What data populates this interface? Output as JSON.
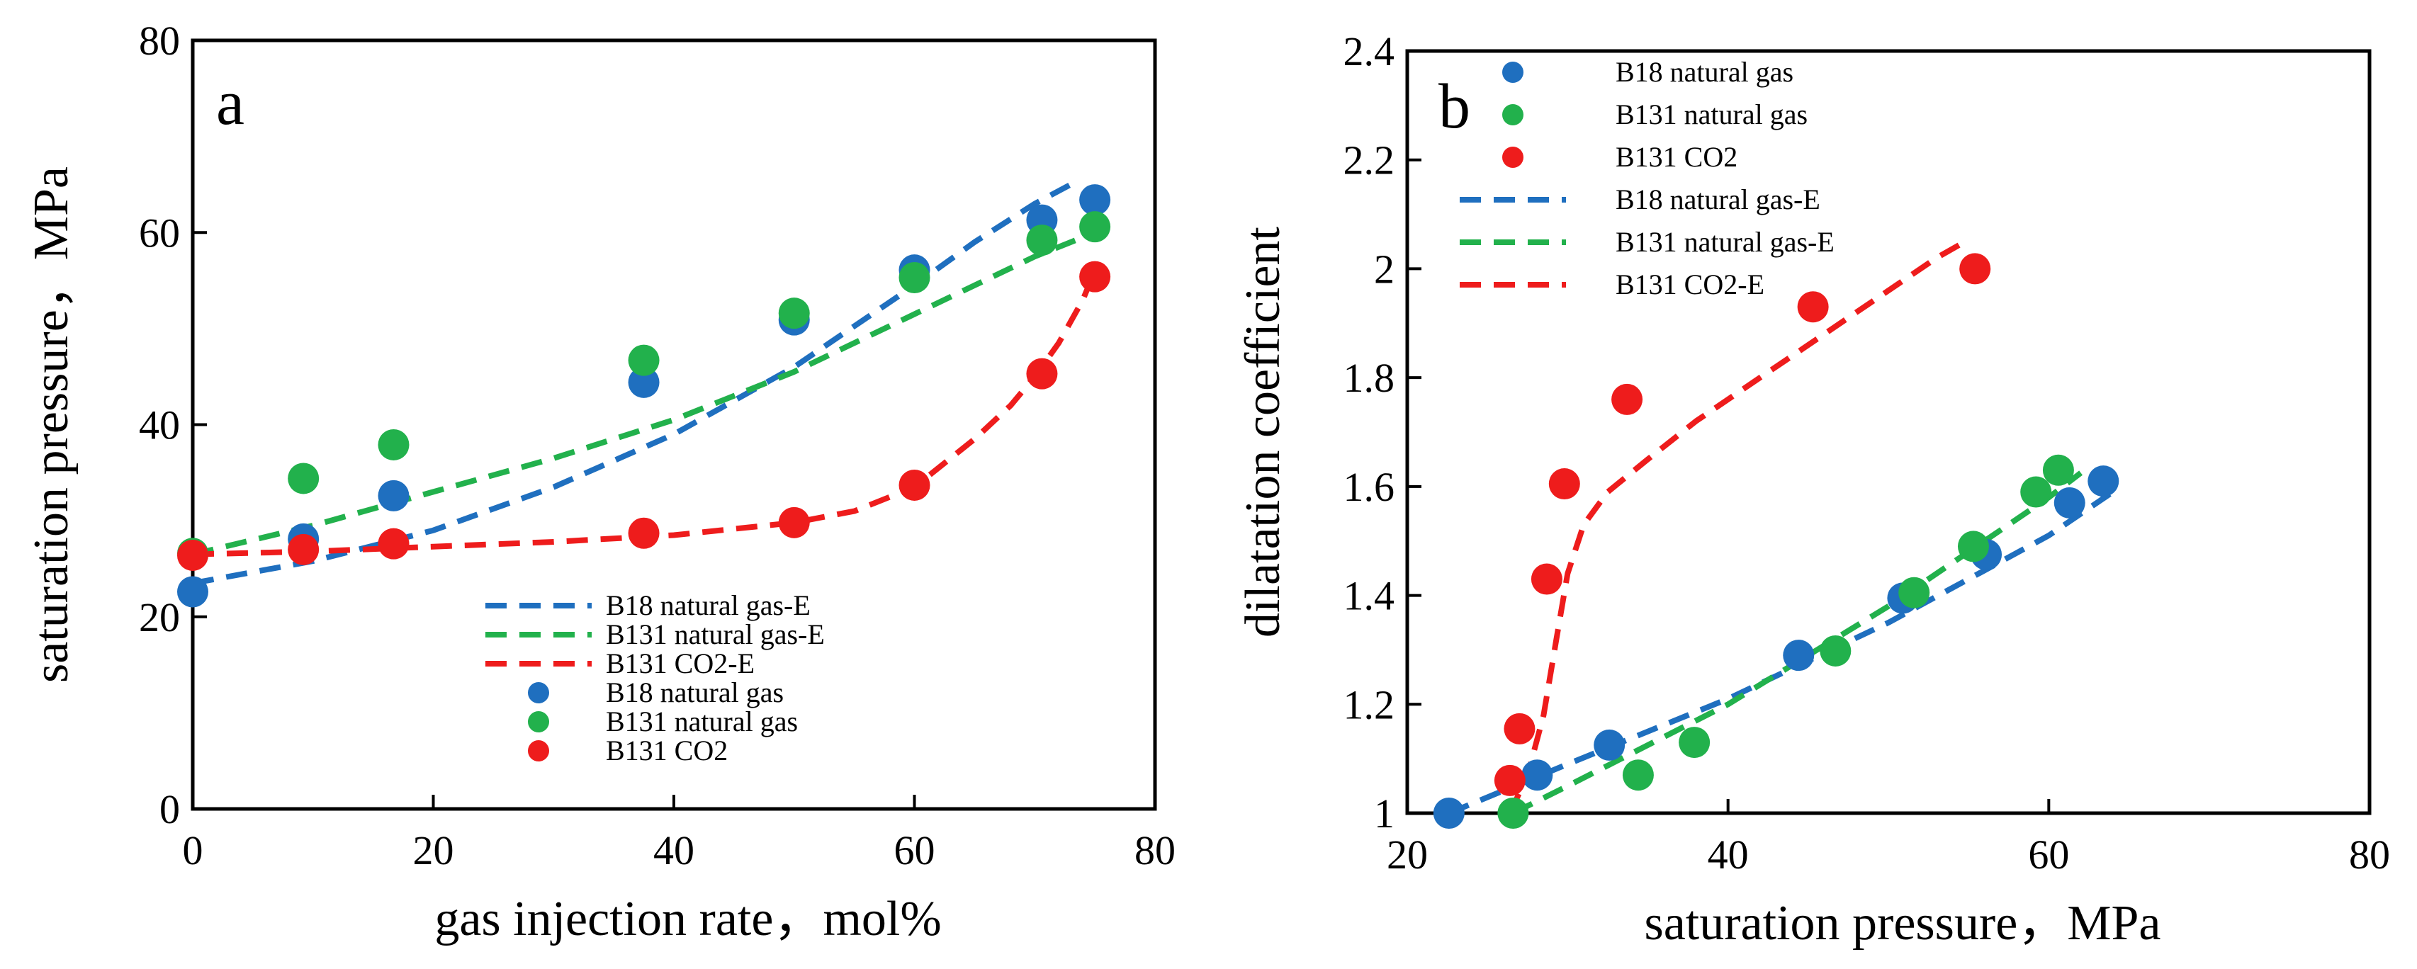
{
  "colors": {
    "B18": "#1f6fbf",
    "B131": "#22b14c",
    "CO2": "#ee1c1c"
  },
  "chart_data": [
    {
      "type": "scatter",
      "panel_label": "a",
      "xlabel": "gas injection rate，mol%",
      "ylabel": "saturation pressure，MPa",
      "xlim": [
        0,
        80
      ],
      "ylim": [
        0,
        80
      ],
      "xticks": [
        "0",
        "20",
        "40",
        "60",
        "80"
      ],
      "yticks": [
        "0",
        "20",
        "40",
        "60",
        "80"
      ],
      "legend_position": "lower-right",
      "series": [
        {
          "name": "B18 natural gas-E",
          "kind": "line",
          "color_key": "B18",
          "x": [
            0,
            10,
            20,
            30,
            40,
            50,
            60,
            65,
            70,
            73
          ],
          "y": [
            23.5,
            25.8,
            29.0,
            33.5,
            39.0,
            46.0,
            54.5,
            59.0,
            63.0,
            65.0
          ]
        },
        {
          "name": "B131 natural gas-E",
          "kind": "line",
          "color_key": "B131",
          "x": [
            0,
            10,
            20,
            30,
            40,
            50,
            60,
            65,
            70,
            74
          ],
          "y": [
            26.5,
            29.5,
            33.0,
            36.5,
            40.5,
            45.5,
            51.5,
            54.5,
            57.5,
            59.5
          ]
        },
        {
          "name": "B131 CO2-E",
          "kind": "line",
          "color_key": "CO2",
          "x": [
            0,
            10,
            20,
            30,
            40,
            50,
            55,
            60,
            65,
            68,
            70,
            72,
            74,
            75
          ],
          "y": [
            26.5,
            26.8,
            27.3,
            27.8,
            28.5,
            29.8,
            31.0,
            33.5,
            38.5,
            42.0,
            45.0,
            48.5,
            53.0,
            56.0
          ]
        },
        {
          "name": "B18 natural gas",
          "kind": "points",
          "color_key": "B18",
          "x": [
            0,
            9.2,
            16.7,
            37.5,
            50,
            60,
            70.6,
            75
          ],
          "y": [
            22.6,
            28.1,
            32.6,
            44.4,
            50.9,
            56.1,
            61.3,
            63.4
          ]
        },
        {
          "name": "B131 natural gas",
          "kind": "points",
          "color_key": "B131",
          "x": [
            0,
            9.2,
            16.7,
            37.5,
            50,
            60,
            70.6,
            75
          ],
          "y": [
            26.6,
            34.4,
            37.9,
            46.7,
            51.6,
            55.3,
            59.2,
            60.6
          ]
        },
        {
          "name": "B131 CO2",
          "kind": "points",
          "color_key": "CO2",
          "x": [
            0,
            9.2,
            16.7,
            37.5,
            50,
            60,
            70.6,
            75
          ],
          "y": [
            26.4,
            27.0,
            27.6,
            28.7,
            29.8,
            33.7,
            45.3,
            55.4
          ]
        }
      ],
      "legend": [
        "B18 natural gas-E",
        "B131 natural gas-E",
        "B131 CO2-E",
        "B18 natural gas",
        "B131 natural gas",
        "B131 CO2"
      ]
    },
    {
      "type": "scatter",
      "panel_label": "b",
      "xlabel": "saturation pressure，MPa",
      "ylabel": "dilatation coefficient",
      "xlim": [
        20,
        80
      ],
      "ylim": [
        1,
        2.4
      ],
      "xticks": [
        "20",
        "40",
        "60",
        "80"
      ],
      "yticks": [
        "1",
        "1.2",
        "1.4",
        "1.6",
        "1.8",
        "2",
        "2.2",
        "2.4"
      ],
      "legend_position": "top-left",
      "series": [
        {
          "name": "B18 natural gas",
          "kind": "points",
          "color_key": "B18",
          "x": [
            22.6,
            28.1,
            32.6,
            44.4,
            50.9,
            56.1,
            61.3,
            63.4
          ],
          "y": [
            1.0,
            1.07,
            1.125,
            1.29,
            1.395,
            1.475,
            1.57,
            1.61
          ]
        },
        {
          "name": "B131 natural gas",
          "kind": "points",
          "color_key": "B131",
          "x": [
            26.6,
            34.4,
            37.9,
            46.7,
            51.6,
            55.3,
            59.2,
            60.6
          ],
          "y": [
            1.0,
            1.07,
            1.13,
            1.298,
            1.405,
            1.49,
            1.59,
            1.63
          ]
        },
        {
          "name": "B131 CO2",
          "kind": "points",
          "color_key": "CO2",
          "x": [
            26.4,
            27.0,
            28.7,
            29.8,
            33.7,
            45.3,
            55.4
          ],
          "y": [
            1.06,
            1.155,
            1.43,
            1.605,
            1.76,
            1.93,
            2.0
          ]
        },
        {
          "name": "B18 natural gas-E",
          "kind": "line",
          "color_key": "B18",
          "x": [
            22.6,
            30,
            40,
            50,
            60,
            64
          ],
          "y": [
            1.0,
            1.09,
            1.21,
            1.35,
            1.51,
            1.59
          ]
        },
        {
          "name": "B131 natural gas-E",
          "kind": "line",
          "color_key": "B131",
          "x": [
            26.6,
            30,
            40,
            50,
            60,
            62
          ],
          "y": [
            1.0,
            1.05,
            1.2,
            1.38,
            1.58,
            1.625
          ]
        },
        {
          "name": "B131 CO2-E",
          "kind": "line",
          "color_key": "CO2",
          "x": [
            26.4,
            27.5,
            28.5,
            29.3,
            30,
            31,
            32.5,
            35,
            38,
            42,
            46,
            50,
            53,
            54.5
          ],
          "y": [
            1.0,
            1.07,
            1.18,
            1.32,
            1.44,
            1.53,
            1.59,
            1.65,
            1.72,
            1.8,
            1.88,
            1.96,
            2.02,
            2.045
          ]
        }
      ],
      "legend": [
        "B18 natural gas",
        "B131 natural gas",
        "B131 CO2",
        "B18 natural gas-E",
        "B131 natural gas-E",
        "B131 CO2-E"
      ]
    }
  ]
}
